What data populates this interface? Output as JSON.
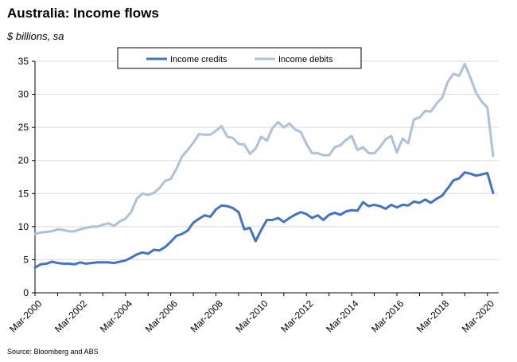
{
  "chart_data": {
    "type": "line",
    "title": "Australia: Income flows",
    "subtitle": "$ billions, sa",
    "source": "Source: Bloomberg and ABS",
    "ylim": [
      0,
      35
    ],
    "yticks": [
      0,
      5,
      10,
      15,
      20,
      25,
      30,
      35
    ],
    "xlim": [
      2000.0,
      2020.5
    ],
    "xticks": [
      {
        "label": "Mar-2000",
        "value": 2000.0
      },
      {
        "label": "Mar-2002",
        "value": 2002.0
      },
      {
        "label": "Mar-2004",
        "value": 2004.0
      },
      {
        "label": "Mar-2006",
        "value": 2006.0
      },
      {
        "label": "Mar-2008",
        "value": 2008.0
      },
      {
        "label": "Mar-2010",
        "value": 2010.0
      },
      {
        "label": "Mar-2012",
        "value": 2012.0
      },
      {
        "label": "Mar-2014",
        "value": 2014.0
      },
      {
        "label": "Mar-2016",
        "value": 2016.0
      },
      {
        "label": "Mar-2018",
        "value": 2018.0
      },
      {
        "label": "Mar-2020",
        "value": 2020.0
      }
    ],
    "grid": true,
    "legend": "top-center",
    "series": [
      {
        "name": "Income credits",
        "color": "#4472c4",
        "x": [
          2000.0,
          2000.25,
          2000.5,
          2000.75,
          2001.0,
          2001.25,
          2001.5,
          2001.75,
          2002.0,
          2002.25,
          2002.5,
          2002.75,
          2003.0,
          2003.25,
          2003.5,
          2003.75,
          2004.0,
          2004.25,
          2004.5,
          2004.75,
          2005.0,
          2005.25,
          2005.5,
          2005.75,
          2006.0,
          2006.25,
          2006.5,
          2006.75,
          2007.0,
          2007.25,
          2007.5,
          2007.75,
          2008.0,
          2008.25,
          2008.5,
          2008.75,
          2009.0,
          2009.25,
          2009.5,
          2009.75,
          2010.0,
          2010.25,
          2010.5,
          2010.75,
          2011.0,
          2011.25,
          2011.5,
          2011.75,
          2012.0,
          2012.25,
          2012.5,
          2012.75,
          2013.0,
          2013.25,
          2013.5,
          2013.75,
          2014.0,
          2014.25,
          2014.5,
          2014.75,
          2015.0,
          2015.25,
          2015.5,
          2015.75,
          2016.0,
          2016.25,
          2016.5,
          2016.75,
          2017.0,
          2017.25,
          2017.5,
          2017.75,
          2018.0,
          2018.25,
          2018.5,
          2018.75,
          2019.0,
          2019.25,
          2019.5,
          2019.75,
          2020.0,
          2020.25
        ],
        "values": [
          3.8,
          4.3,
          4.4,
          4.7,
          4.5,
          4.4,
          4.4,
          4.3,
          4.6,
          4.4,
          4.5,
          4.6,
          4.6,
          4.6,
          4.5,
          4.7,
          4.9,
          5.3,
          5.8,
          6.1,
          5.9,
          6.5,
          6.4,
          6.9,
          7.7,
          8.6,
          8.9,
          9.4,
          10.6,
          11.2,
          11.7,
          11.5,
          12.6,
          13.2,
          13.1,
          12.8,
          12.2,
          9.6,
          9.8,
          7.8,
          9.5,
          11.0,
          11.0,
          11.3,
          10.7,
          11.3,
          11.8,
          12.2,
          11.9,
          11.3,
          11.7,
          11.0,
          11.8,
          12.1,
          11.8,
          12.3,
          12.5,
          12.4,
          13.7,
          13.1,
          13.3,
          13.1,
          12.7,
          13.3,
          12.9,
          13.3,
          13.2,
          13.8,
          13.6,
          14.1,
          13.6,
          14.2,
          14.7,
          15.8,
          17.0,
          17.3,
          18.2,
          18.0,
          17.7,
          17.9,
          18.1,
          15.1
        ]
      },
      {
        "name": "Income debits",
        "color": "#adc0dc",
        "x": [
          2000.0,
          2000.25,
          2000.5,
          2000.75,
          2001.0,
          2001.25,
          2001.5,
          2001.75,
          2002.0,
          2002.25,
          2002.5,
          2002.75,
          2003.0,
          2003.25,
          2003.5,
          2003.75,
          2004.0,
          2004.25,
          2004.5,
          2004.75,
          2005.0,
          2005.25,
          2005.5,
          2005.75,
          2006.0,
          2006.25,
          2006.5,
          2006.75,
          2007.0,
          2007.25,
          2007.5,
          2007.75,
          2008.0,
          2008.25,
          2008.5,
          2008.75,
          2009.0,
          2009.25,
          2009.5,
          2009.75,
          2010.0,
          2010.25,
          2010.5,
          2010.75,
          2011.0,
          2011.25,
          2011.5,
          2011.75,
          2012.0,
          2012.25,
          2012.5,
          2012.75,
          2013.0,
          2013.25,
          2013.5,
          2013.75,
          2014.0,
          2014.25,
          2014.5,
          2014.75,
          2015.0,
          2015.25,
          2015.5,
          2015.75,
          2016.0,
          2016.25,
          2016.5,
          2016.75,
          2017.0,
          2017.25,
          2017.5,
          2017.75,
          2018.0,
          2018.25,
          2018.5,
          2018.75,
          2019.0,
          2019.25,
          2019.5,
          2019.75,
          2020.0,
          2020.25
        ],
        "values": [
          8.9,
          9.1,
          9.2,
          9.3,
          9.6,
          9.5,
          9.3,
          9.3,
          9.6,
          9.8,
          10.0,
          10.0,
          10.3,
          10.5,
          10.1,
          10.8,
          11.2,
          12.2,
          14.2,
          15.0,
          14.8,
          15.1,
          15.8,
          16.9,
          17.2,
          18.7,
          20.6,
          21.6,
          22.7,
          24.0,
          23.9,
          23.9,
          24.5,
          25.2,
          23.6,
          23.4,
          22.5,
          22.4,
          21.0,
          21.8,
          23.6,
          23.0,
          24.9,
          25.8,
          25.0,
          25.6,
          24.7,
          24.3,
          22.5,
          21.1,
          21.1,
          20.8,
          20.8,
          22.0,
          22.3,
          23.1,
          23.7,
          21.6,
          22.0,
          21.1,
          21.1,
          22.0,
          23.2,
          23.7,
          21.2,
          23.3,
          22.6,
          26.2,
          26.5,
          27.5,
          27.4,
          28.6,
          29.5,
          31.9,
          33.1,
          32.8,
          34.6,
          32.5,
          30.2,
          28.9,
          28.0,
          20.7
        ]
      }
    ]
  }
}
